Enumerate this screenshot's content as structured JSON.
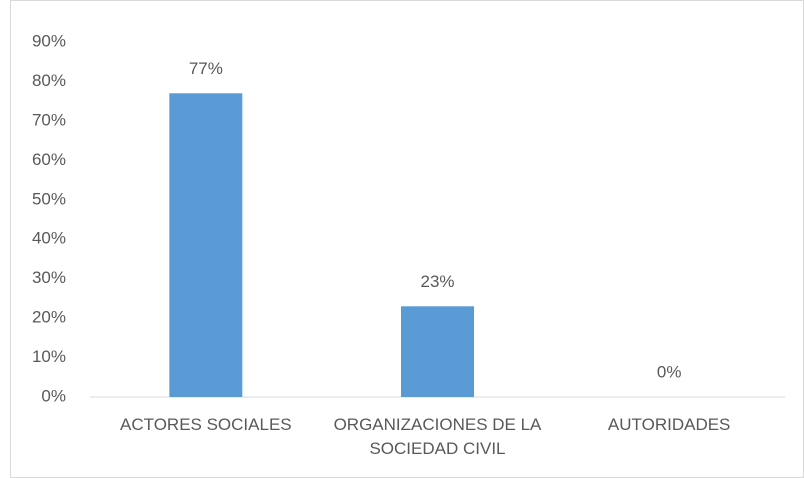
{
  "chart_data": {
    "type": "bar",
    "categories": [
      "ACTORES SOCIALES",
      "ORGANIZACIONES DE LA SOCIEDAD CIVIL",
      "AUTORIDADES"
    ],
    "values": [
      77,
      23,
      0
    ],
    "value_labels": [
      "77%",
      "23%",
      "0%"
    ],
    "color": "#5b9bd5",
    "ylim": [
      0,
      90
    ],
    "yticks": [
      {
        "value": 0,
        "label": "0%"
      },
      {
        "value": 10,
        "label": "10%"
      },
      {
        "value": 20,
        "label": "20%"
      },
      {
        "value": 30,
        "label": "30%"
      },
      {
        "value": 40,
        "label": "40%"
      },
      {
        "value": 50,
        "label": "50%"
      },
      {
        "value": 60,
        "label": "60%"
      },
      {
        "value": 70,
        "label": "70%"
      },
      {
        "value": 80,
        "label": "80%"
      },
      {
        "value": 90,
        "label": "90%"
      }
    ],
    "grid": false
  }
}
